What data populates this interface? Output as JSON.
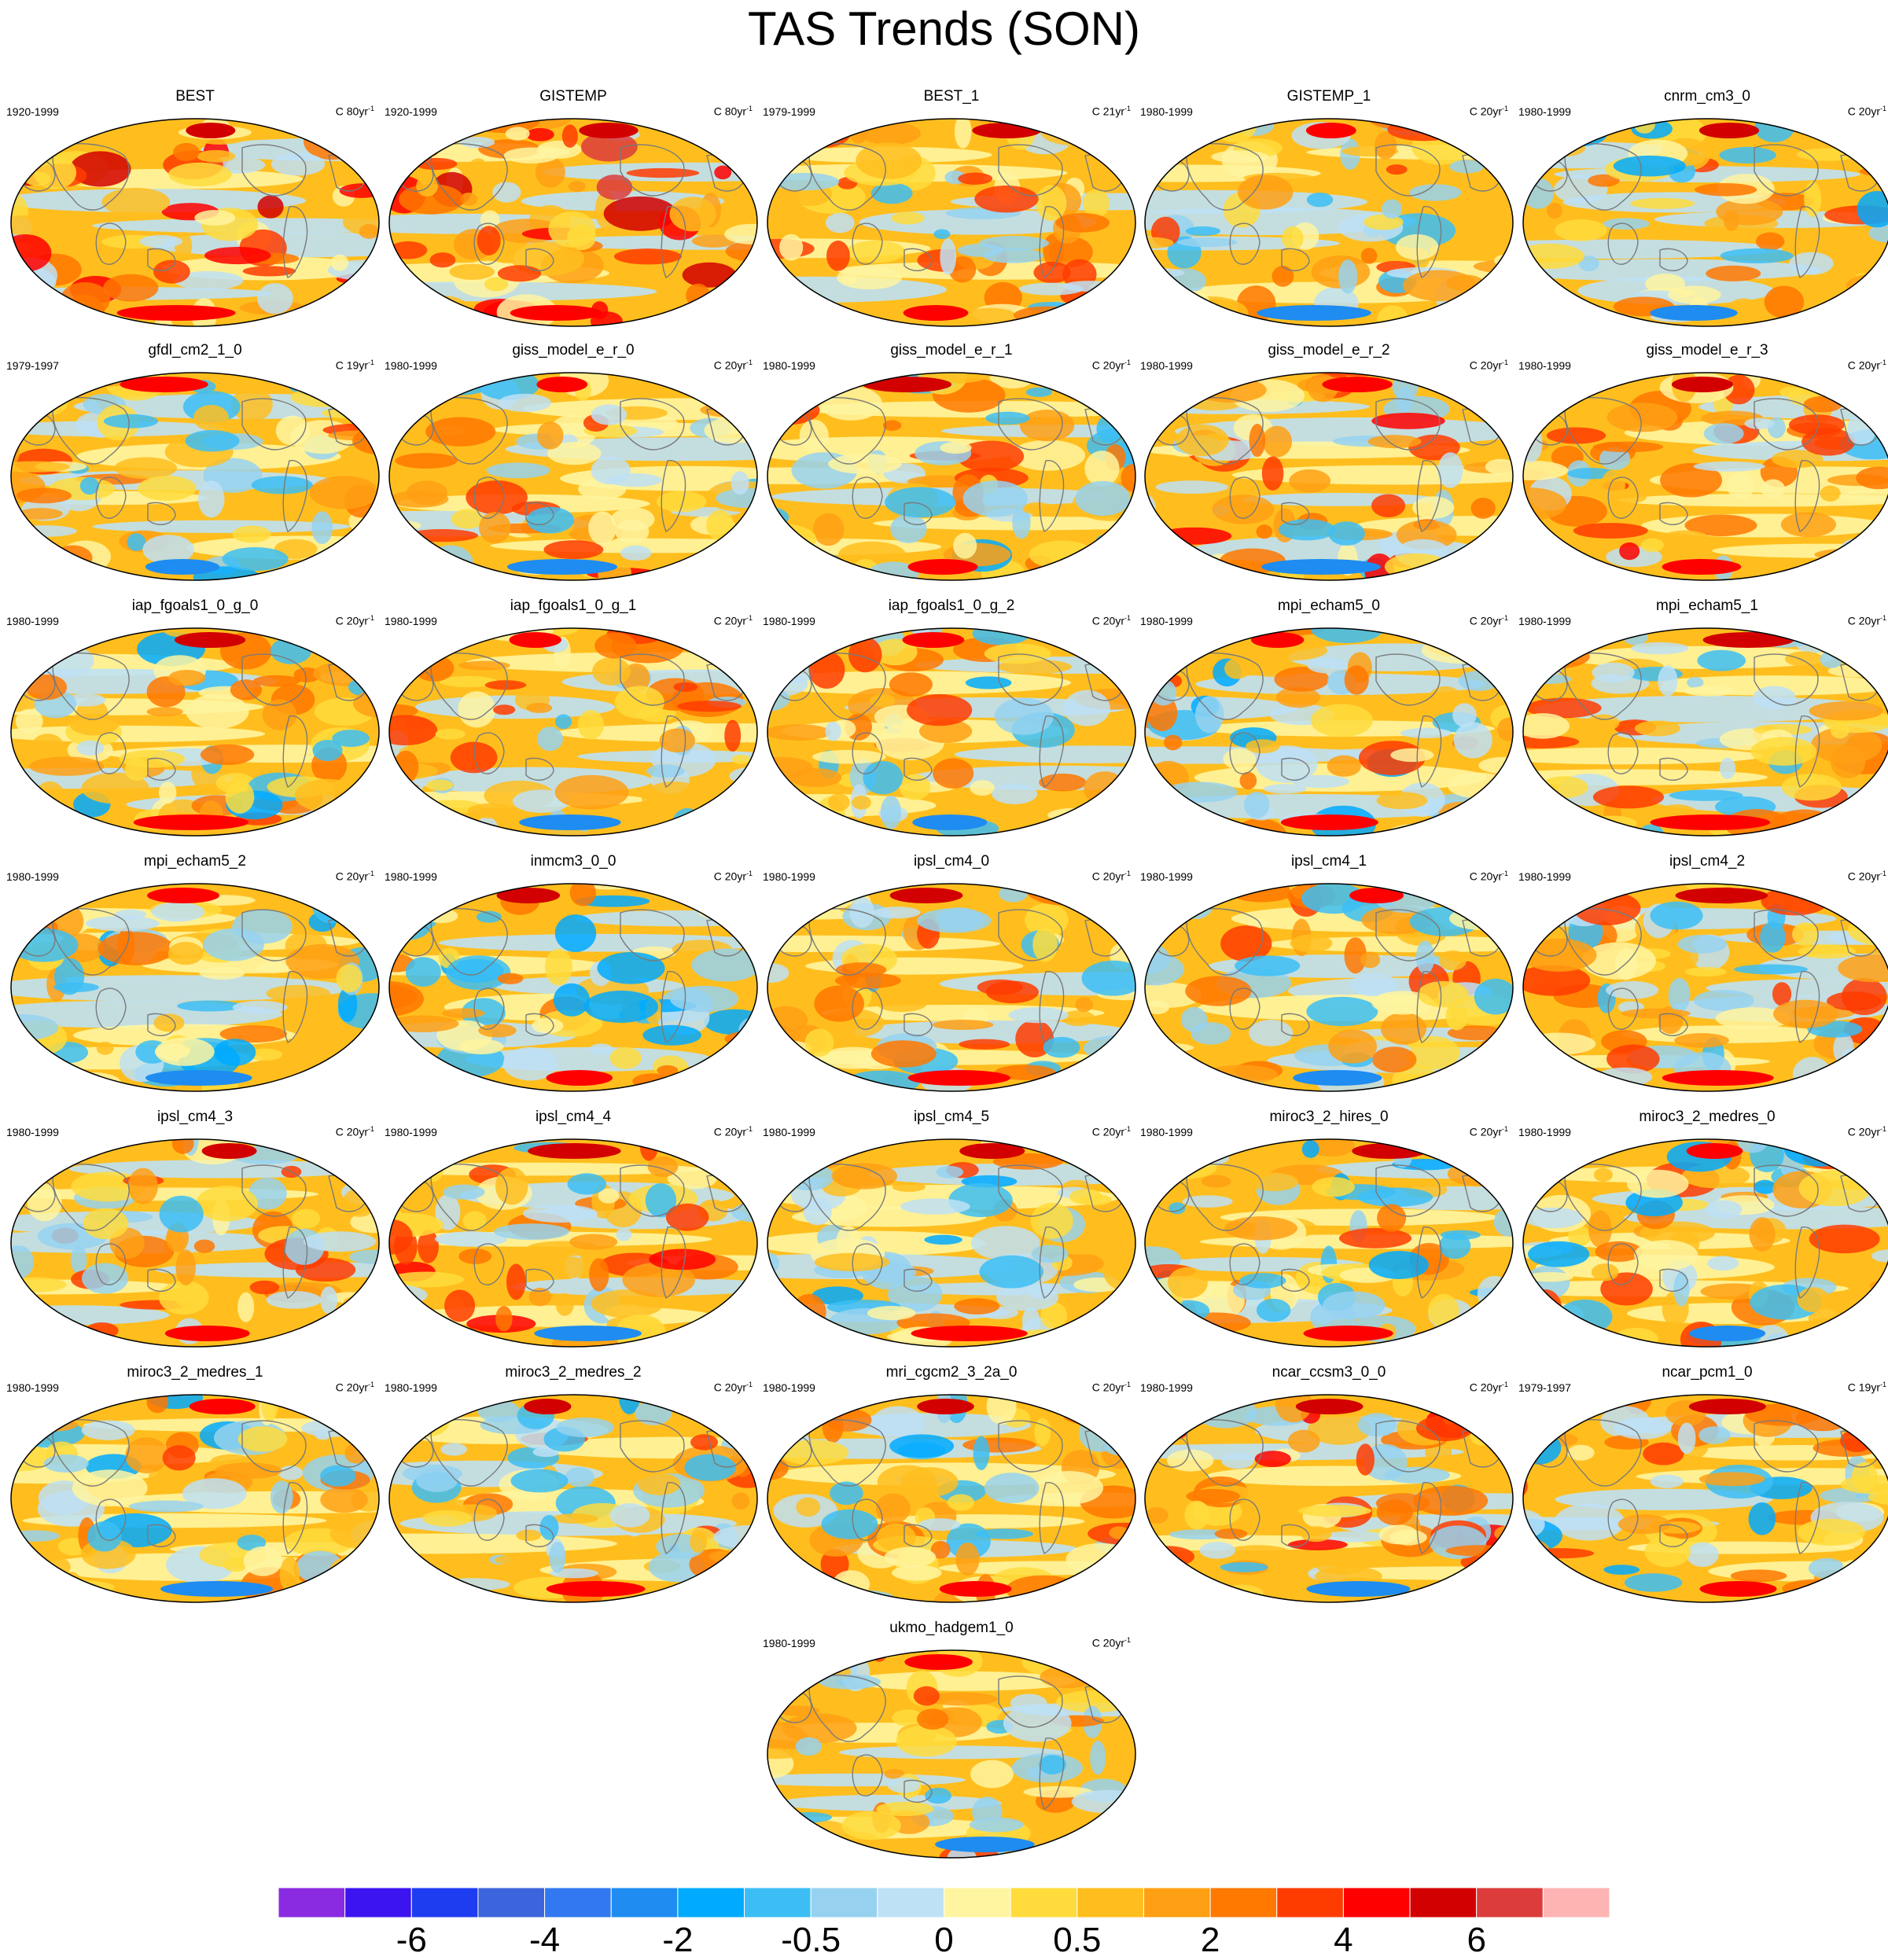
{
  "title": "TAS Trends (SON)",
  "panels": [
    {
      "name": "BEST",
      "period": "1920-1999",
      "units": "C 80yr",
      "exp": "-1",
      "warm": 0.35,
      "seed": 3
    },
    {
      "name": "GISTEMP",
      "period": "1920-1999",
      "units": "C 80yr",
      "exp": "-1",
      "warm": 0.45,
      "seed": 7
    },
    {
      "name": "BEST_1",
      "period": "1979-1999",
      "units": "C 21yr",
      "exp": "-1",
      "warm": 0.15,
      "seed": 11
    },
    {
      "name": "GISTEMP_1",
      "period": "1980-1999",
      "units": "C 20yr",
      "exp": "-1",
      "warm": 0.1,
      "seed": 13
    },
    {
      "name": "cnrm_cm3_0",
      "period": "1980-1999",
      "units": "C 20yr",
      "exp": "-1",
      "warm": 0.05,
      "seed": 17
    },
    {
      "name": "gfdl_cm2_1_0",
      "period": "1979-1997",
      "units": "C 19yr",
      "exp": "-1",
      "warm": 0.1,
      "seed": 19
    },
    {
      "name": "giss_model_e_r_0",
      "period": "1980-1999",
      "units": "C 20yr",
      "exp": "-1",
      "warm": 0.15,
      "seed": 23
    },
    {
      "name": "giss_model_e_r_1",
      "period": "1980-1999",
      "units": "C 20yr",
      "exp": "-1",
      "warm": 0.1,
      "seed": 29
    },
    {
      "name": "giss_model_e_r_2",
      "period": "1980-1999",
      "units": "C 20yr",
      "exp": "-1",
      "warm": 0.15,
      "seed": 31
    },
    {
      "name": "giss_model_e_r_3",
      "period": "1980-1999",
      "units": "C 20yr",
      "exp": "-1",
      "warm": 0.2,
      "seed": 37
    },
    {
      "name": "iap_fgoals1_0_g_0",
      "period": "1980-1999",
      "units": "C 20yr",
      "exp": "-1",
      "warm": 0.05,
      "seed": 41
    },
    {
      "name": "iap_fgoals1_0_g_1",
      "period": "1980-1999",
      "units": "C 20yr",
      "exp": "-1",
      "warm": 0.15,
      "seed": 43
    },
    {
      "name": "iap_fgoals1_0_g_2",
      "period": "1980-1999",
      "units": "C 20yr",
      "exp": "-1",
      "warm": 0.1,
      "seed": 47
    },
    {
      "name": "mpi_echam5_0",
      "period": "1980-1999",
      "units": "C 20yr",
      "exp": "-1",
      "warm": 0.05,
      "seed": 53
    },
    {
      "name": "mpi_echam5_1",
      "period": "1980-1999",
      "units": "C 20yr",
      "exp": "-1",
      "warm": 0.1,
      "seed": 59
    },
    {
      "name": "mpi_echam5_2",
      "period": "1980-1999",
      "units": "C 20yr",
      "exp": "-1",
      "warm": 0.0,
      "seed": 61
    },
    {
      "name": "inmcm3_0_0",
      "period": "1980-1999",
      "units": "C 20yr",
      "exp": "-1",
      "warm": 0.05,
      "seed": 67
    },
    {
      "name": "ipsl_cm4_0",
      "period": "1980-1999",
      "units": "C 20yr",
      "exp": "-1",
      "warm": 0.1,
      "seed": 71
    },
    {
      "name": "ipsl_cm4_1",
      "period": "1980-1999",
      "units": "C 20yr",
      "exp": "-1",
      "warm": 0.1,
      "seed": 73
    },
    {
      "name": "ipsl_cm4_2",
      "period": "1980-1999",
      "units": "C 20yr",
      "exp": "-1",
      "warm": 0.1,
      "seed": 79
    },
    {
      "name": "ipsl_cm4_3",
      "period": "1980-1999",
      "units": "C 20yr",
      "exp": "-1",
      "warm": 0.15,
      "seed": 83
    },
    {
      "name": "ipsl_cm4_4",
      "period": "1980-1999",
      "units": "C 20yr",
      "exp": "-1",
      "warm": 0.2,
      "seed": 89
    },
    {
      "name": "ipsl_cm4_5",
      "period": "1980-1999",
      "units": "C 20yr",
      "exp": "-1",
      "warm": 0.1,
      "seed": 97
    },
    {
      "name": "miroc3_2_hires_0",
      "period": "1980-1999",
      "units": "C 20yr",
      "exp": "-1",
      "warm": 0.05,
      "seed": 101
    },
    {
      "name": "miroc3_2_medres_0",
      "period": "1980-1999",
      "units": "C 20yr",
      "exp": "-1",
      "warm": 0.05,
      "seed": 103
    },
    {
      "name": "miroc3_2_medres_1",
      "period": "1980-1999",
      "units": "C 20yr",
      "exp": "-1",
      "warm": 0.05,
      "seed": 107
    },
    {
      "name": "miroc3_2_medres_2",
      "period": "1980-1999",
      "units": "C 20yr",
      "exp": "-1",
      "warm": 0.1,
      "seed": 109
    },
    {
      "name": "mri_cgcm2_3_2a_0",
      "period": "1980-1999",
      "units": "C 20yr",
      "exp": "-1",
      "warm": 0.1,
      "seed": 113
    },
    {
      "name": "ncar_ccsm3_0_0",
      "period": "1980-1999",
      "units": "C 20yr",
      "exp": "-1",
      "warm": 0.2,
      "seed": 127
    },
    {
      "name": "ncar_pcm1_0",
      "period": "1979-1997",
      "units": "C 19yr",
      "exp": "-1",
      "warm": 0.05,
      "seed": 131
    },
    {
      "name": "ukmo_hadgem1_0",
      "period": "1980-1999",
      "units": "C 20yr",
      "exp": "-1",
      "warm": 0.15,
      "seed": 137
    }
  ],
  "colorbar": {
    "colors": [
      "#8a2be2",
      "#3c14f0",
      "#1e3cf0",
      "#3c64dc",
      "#3278f0",
      "#1e8cf0",
      "#00aaff",
      "#3cbef5",
      "#96d2f0",
      "#bee1f5",
      "#fff5a0",
      "#ffdc3c",
      "#ffbe1e",
      "#ffa014",
      "#ff7800",
      "#ff3c00",
      "#ff0000",
      "#d20000",
      "#dc3c3c",
      "#ffb4b4"
    ],
    "tick_labels": [
      "-6",
      "-4",
      "-2",
      "-0.5",
      "0",
      "0.5",
      "2",
      "4",
      "6"
    ],
    "tick_boundaries": [
      2,
      4,
      6,
      8,
      10,
      12,
      14,
      16,
      18
    ]
  },
  "chart_data": {
    "type": "heatmap",
    "title": "TAS Trends (SON)",
    "projection": "Robinson, global, Pacific-centred",
    "panel_count": 31,
    "colorbar_levels": [
      -7,
      -6,
      -5,
      -4,
      -3,
      -2,
      -1,
      -0.5,
      -0.25,
      0,
      0.25,
      0.5,
      1,
      2,
      3,
      4,
      5,
      6,
      7
    ],
    "colorbar_tick_labels": [
      "-6",
      "-4",
      "-2",
      "-0.5",
      "0",
      "0.5",
      "2",
      "4",
      "6"
    ]
  }
}
